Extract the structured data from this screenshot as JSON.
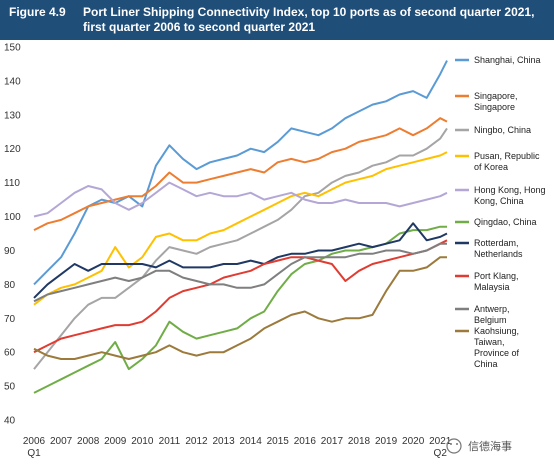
{
  "figure": {
    "label": "Figure 4.9",
    "title": "Port Liner Shipping Connectivity Index, top 10 ports as of second quarter 2021, first quarter 2006 to second quarter 2021"
  },
  "watermark": {
    "text": "信德海事",
    "icon": "wechat-icon"
  },
  "colors": {
    "header_bg": "#1f4e79",
    "grid": "#d9d9d9"
  },
  "chart_data": {
    "type": "line",
    "title": "Port Liner Shipping Connectivity Index, top 10 ports as of second quarter 2021, first quarter 2006 to second quarter 2021",
    "xlabel": "",
    "ylabel": "",
    "x_ticks": [
      "2006",
      "2007",
      "2008",
      "2009",
      "2010",
      "2011",
      "2012",
      "2013",
      "2014",
      "2015",
      "2016",
      "2017",
      "2018",
      "2019",
      "2020",
      "2021"
    ],
    "x_sub_ticks": {
      "2006": "Q1",
      "2021": "Q2"
    },
    "xlim": [
      "2006 Q1",
      "2021 Q2"
    ],
    "ylim": [
      40,
      150
    ],
    "y_ticks": [
      40,
      50,
      60,
      70,
      80,
      90,
      100,
      110,
      120,
      130,
      140,
      150
    ],
    "grid": false,
    "legend_position": "right",
    "series": [
      {
        "name": "Shanghai, China",
        "color": "#5b9bd5",
        "x": [
          2006.0,
          2006.5,
          2007.0,
          2007.5,
          2008.0,
          2008.5,
          2009.0,
          2009.5,
          2010.0,
          2010.5,
          2011.0,
          2011.5,
          2012.0,
          2012.5,
          2013.0,
          2013.5,
          2014.0,
          2014.5,
          2015.0,
          2015.5,
          2016.0,
          2016.5,
          2017.0,
          2017.5,
          2018.0,
          2018.5,
          2019.0,
          2019.5,
          2020.0,
          2020.5,
          2021.0,
          2021.25
        ],
        "y": [
          80,
          84,
          88,
          95,
          103,
          105,
          104,
          106,
          103,
          115,
          121,
          117,
          114,
          116,
          117,
          118,
          120,
          119,
          122,
          126,
          125,
          124,
          126,
          129,
          131,
          133,
          134,
          136,
          137,
          135,
          142,
          146
        ]
      },
      {
        "name": "Singapore, Singapore",
        "color": "#ed7d31",
        "x": [
          2006.0,
          2006.5,
          2007.0,
          2007.5,
          2008.0,
          2008.5,
          2009.0,
          2009.5,
          2010.0,
          2010.5,
          2011.0,
          2011.5,
          2012.0,
          2012.5,
          2013.0,
          2013.5,
          2014.0,
          2014.5,
          2015.0,
          2015.5,
          2016.0,
          2016.5,
          2017.0,
          2017.5,
          2018.0,
          2018.5,
          2019.0,
          2019.5,
          2020.0,
          2020.5,
          2021.0,
          2021.25
        ],
        "y": [
          96,
          98,
          99,
          101,
          103,
          104,
          105,
          106,
          106,
          109,
          113,
          110,
          110,
          111,
          112,
          113,
          114,
          113,
          116,
          117,
          116,
          117,
          119,
          120,
          122,
          123,
          124,
          126,
          124,
          126,
          129,
          128
        ]
      },
      {
        "name": "Ningbo, China",
        "color": "#a5a5a5",
        "x": [
          2006.0,
          2006.5,
          2007.0,
          2007.5,
          2008.0,
          2008.5,
          2009.0,
          2009.5,
          2010.0,
          2010.5,
          2011.0,
          2011.5,
          2012.0,
          2012.5,
          2013.0,
          2013.5,
          2014.0,
          2014.5,
          2015.0,
          2015.5,
          2016.0,
          2016.5,
          2017.0,
          2017.5,
          2018.0,
          2018.5,
          2019.0,
          2019.5,
          2020.0,
          2020.5,
          2021.0,
          2021.25
        ],
        "y": [
          55,
          60,
          65,
          70,
          74,
          76,
          76,
          79,
          82,
          87,
          91,
          90,
          89,
          91,
          92,
          93,
          95,
          97,
          99,
          102,
          106,
          107,
          110,
          112,
          113,
          115,
          116,
          118,
          118,
          120,
          123,
          126
        ]
      },
      {
        "name": "Pusan, Republic of Korea",
        "color": "#ffc000",
        "x": [
          2006.0,
          2006.5,
          2007.0,
          2007.5,
          2008.0,
          2008.5,
          2009.0,
          2009.5,
          2010.0,
          2010.5,
          2011.0,
          2011.5,
          2012.0,
          2012.5,
          2013.0,
          2013.5,
          2014.0,
          2014.5,
          2015.0,
          2015.5,
          2016.0,
          2016.5,
          2017.0,
          2017.5,
          2018.0,
          2018.5,
          2019.0,
          2019.5,
          2020.0,
          2020.5,
          2021.0,
          2021.25
        ],
        "y": [
          74,
          77,
          79,
          80,
          82,
          84,
          91,
          85,
          88,
          94,
          95,
          93,
          93,
          95,
          96,
          98,
          100,
          102,
          104,
          106,
          107,
          106,
          108,
          110,
          111,
          112,
          114,
          115,
          116,
          117,
          118,
          119
        ]
      },
      {
        "name": "Hong Kong, Hong Kong, China",
        "color": "#b4a7d6",
        "x": [
          2006.0,
          2006.5,
          2007.0,
          2007.5,
          2008.0,
          2008.5,
          2009.0,
          2009.5,
          2010.0,
          2010.5,
          2011.0,
          2011.5,
          2012.0,
          2012.5,
          2013.0,
          2013.5,
          2014.0,
          2014.5,
          2015.0,
          2015.5,
          2016.0,
          2016.5,
          2017.0,
          2017.5,
          2018.0,
          2018.5,
          2019.0,
          2019.5,
          2020.0,
          2020.5,
          2021.0,
          2021.25
        ],
        "y": [
          100,
          101,
          104,
          107,
          109,
          108,
          104,
          102,
          104,
          107,
          110,
          108,
          106,
          107,
          106,
          106,
          107,
          105,
          106,
          107,
          105,
          104,
          104,
          105,
          104,
          104,
          104,
          103,
          104,
          105,
          106,
          107
        ]
      },
      {
        "name": "Qingdao, China",
        "color": "#70ad47",
        "x": [
          2006.0,
          2006.5,
          2007.0,
          2007.5,
          2008.0,
          2008.5,
          2009.0,
          2009.5,
          2010.0,
          2010.5,
          2011.0,
          2011.5,
          2012.0,
          2012.5,
          2013.0,
          2013.5,
          2014.0,
          2014.5,
          2015.0,
          2015.5,
          2016.0,
          2016.5,
          2017.0,
          2017.5,
          2018.0,
          2018.5,
          2019.0,
          2019.5,
          2020.0,
          2020.5,
          2021.0,
          2021.25
        ],
        "y": [
          48,
          50,
          52,
          54,
          56,
          58,
          63,
          55,
          58,
          62,
          69,
          66,
          64,
          65,
          66,
          67,
          70,
          72,
          78,
          83,
          86,
          87,
          89,
          90,
          90,
          91,
          92,
          95,
          96,
          96,
          97,
          97
        ]
      },
      {
        "name": "Rotterdam, Netherlands",
        "color": "#1f3864",
        "x": [
          2006.0,
          2006.5,
          2007.0,
          2007.5,
          2008.0,
          2008.5,
          2009.0,
          2009.5,
          2010.0,
          2010.5,
          2011.0,
          2011.5,
          2012.0,
          2012.5,
          2013.0,
          2013.5,
          2014.0,
          2014.5,
          2015.0,
          2015.5,
          2016.0,
          2016.5,
          2017.0,
          2017.5,
          2018.0,
          2018.5,
          2019.0,
          2019.5,
          2020.0,
          2020.5,
          2021.0,
          2021.25
        ],
        "y": [
          76,
          80,
          83,
          86,
          84,
          86,
          86,
          86,
          86,
          85,
          87,
          85,
          85,
          85,
          86,
          86,
          87,
          86,
          88,
          89,
          89,
          90,
          90,
          91,
          92,
          91,
          92,
          93,
          98,
          93,
          94,
          95
        ]
      },
      {
        "name": "Port Klang, Malaysia",
        "color": "#e03c31",
        "x": [
          2006.0,
          2006.5,
          2007.0,
          2007.5,
          2008.0,
          2008.5,
          2009.0,
          2009.5,
          2010.0,
          2010.5,
          2011.0,
          2011.5,
          2012.0,
          2012.5,
          2013.0,
          2013.5,
          2014.0,
          2014.5,
          2015.0,
          2015.5,
          2016.0,
          2016.5,
          2017.0,
          2017.5,
          2018.0,
          2018.5,
          2019.0,
          2019.5,
          2020.0,
          2020.5,
          2021.0,
          2021.25
        ],
        "y": [
          60,
          62,
          64,
          65,
          66,
          67,
          68,
          68,
          69,
          72,
          76,
          78,
          79,
          80,
          82,
          83,
          84,
          86,
          87,
          88,
          88,
          87,
          86,
          81,
          84,
          86,
          87,
          88,
          89,
          90,
          92,
          93
        ]
      },
      {
        "name": "Antwerp, Belgium",
        "color": "#7f7f7f",
        "x": [
          2006.0,
          2006.5,
          2007.0,
          2007.5,
          2008.0,
          2008.5,
          2009.0,
          2009.5,
          2010.0,
          2010.5,
          2011.0,
          2011.5,
          2012.0,
          2012.5,
          2013.0,
          2013.5,
          2014.0,
          2014.5,
          2015.0,
          2015.5,
          2016.0,
          2016.5,
          2017.0,
          2017.5,
          2018.0,
          2018.5,
          2019.0,
          2019.5,
          2020.0,
          2020.5,
          2021.0,
          2021.25
        ],
        "y": [
          75,
          77,
          78,
          79,
          80,
          81,
          82,
          81,
          82,
          84,
          84,
          82,
          81,
          80,
          80,
          79,
          79,
          80,
          83,
          86,
          88,
          88,
          88,
          88,
          89,
          89,
          90,
          90,
          89,
          90,
          92,
          92
        ]
      },
      {
        "name": "Kaohsiung, Taiwan, Province of China",
        "color": "#9c7a3c",
        "x": [
          2006.0,
          2006.5,
          2007.0,
          2007.5,
          2008.0,
          2008.5,
          2009.0,
          2009.5,
          2010.0,
          2010.5,
          2011.0,
          2011.5,
          2012.0,
          2012.5,
          2013.0,
          2013.5,
          2014.0,
          2014.5,
          2015.0,
          2015.5,
          2016.0,
          2016.5,
          2017.0,
          2017.5,
          2018.0,
          2018.5,
          2019.0,
          2019.5,
          2020.0,
          2020.5,
          2021.0,
          2021.25
        ],
        "y": [
          61,
          59,
          58,
          58,
          59,
          60,
          59,
          58,
          59,
          60,
          62,
          60,
          59,
          60,
          60,
          62,
          64,
          67,
          69,
          71,
          72,
          70,
          69,
          70,
          70,
          71,
          78,
          84,
          84,
          85,
          88,
          88
        ]
      }
    ]
  }
}
